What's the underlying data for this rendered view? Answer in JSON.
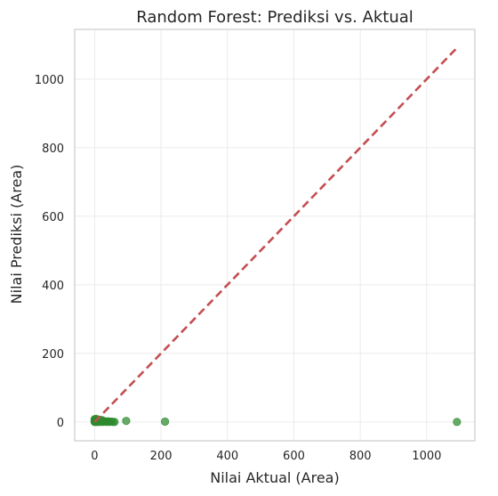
{
  "chart_data": {
    "type": "scatter",
    "title": "Random Forest: Prediksi vs. Aktual",
    "xlabel": "Nilai Aktual (Area)",
    "ylabel": "Nilai Prediksi (Area)",
    "xlim": [
      -60,
      1145
    ],
    "ylim": [
      -55,
      1145
    ],
    "xticks": [
      0,
      200,
      400,
      600,
      800,
      1000
    ],
    "yticks": [
      0,
      200,
      400,
      600,
      800,
      1000
    ],
    "grid": true,
    "reference_line": {
      "from": [
        0,
        0
      ],
      "to": [
        1091,
        1091
      ],
      "style": "dashed",
      "color": "#c44e52"
    },
    "marker_color": "#2e8b2e",
    "points": [
      [
        0,
        0
      ],
      [
        0,
        2
      ],
      [
        0,
        5
      ],
      [
        0,
        8
      ],
      [
        1,
        1
      ],
      [
        1,
        4
      ],
      [
        2,
        0
      ],
      [
        2,
        6
      ],
      [
        3,
        3
      ],
      [
        4,
        1
      ],
      [
        5,
        9
      ],
      [
        6,
        0
      ],
      [
        7,
        4
      ],
      [
        8,
        2
      ],
      [
        10,
        0
      ],
      [
        11,
        5
      ],
      [
        12,
        1
      ],
      [
        14,
        3
      ],
      [
        16,
        0
      ],
      [
        18,
        2
      ],
      [
        20,
        6
      ],
      [
        22,
        1
      ],
      [
        25,
        0
      ],
      [
        28,
        3
      ],
      [
        32,
        1
      ],
      [
        36,
        0
      ],
      [
        40,
        2
      ],
      [
        45,
        0
      ],
      [
        50,
        1
      ],
      [
        55,
        0
      ],
      [
        60,
        0
      ],
      [
        95,
        3
      ],
      [
        212,
        1
      ],
      [
        1091,
        0
      ]
    ]
  }
}
